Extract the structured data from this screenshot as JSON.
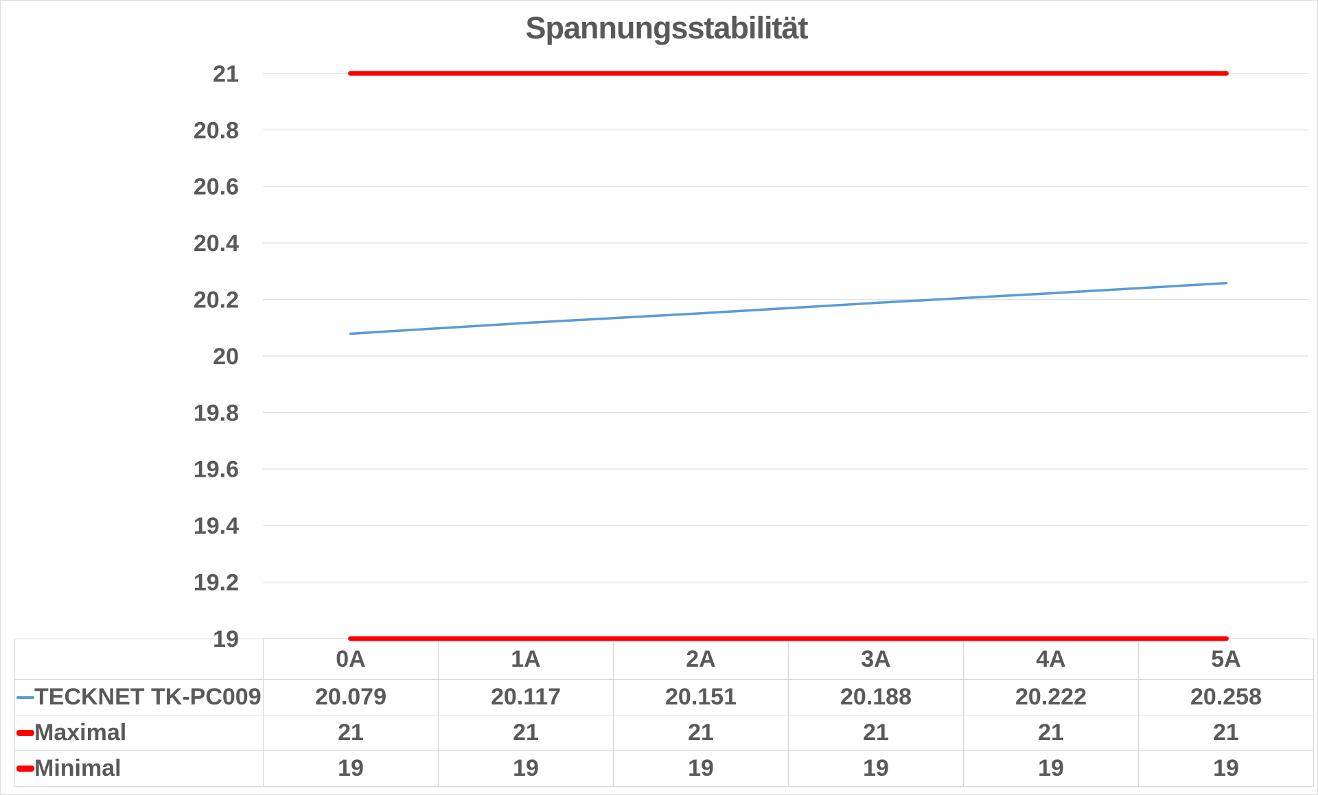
{
  "title": "Spannungsstabilität",
  "colors": {
    "series_blue": "#5b9bd5",
    "series_red": "#fe0000",
    "text_gray": "#595959",
    "gridline": "#e2e2e2",
    "table_border": "#d6d6d6"
  },
  "chart_data": {
    "type": "line",
    "title": "Spannungsstabilität",
    "categories": [
      "0A",
      "1A",
      "2A",
      "3A",
      "4A",
      "5A"
    ],
    "series": [
      {
        "name": "TECKNET TK-PC009",
        "values": [
          20.079,
          20.117,
          20.151,
          20.188,
          20.222,
          20.258
        ],
        "color": "#5b9bd5",
        "stroke_width": 3.5
      },
      {
        "name": "Maximal",
        "values": [
          21,
          21,
          21,
          21,
          21,
          21
        ],
        "color": "#fe0000",
        "stroke_width": 7
      },
      {
        "name": "Minimal",
        "values": [
          19,
          19,
          19,
          19,
          19,
          19
        ],
        "color": "#fe0000",
        "stroke_width": 7
      }
    ],
    "xlabel": "",
    "ylabel": "",
    "ylim": [
      19,
      21
    ],
    "ytick_step": 0.2,
    "yticks": [
      "21",
      "20.8",
      "20.6",
      "20.4",
      "20.2",
      "20",
      "19.8",
      "19.6",
      "19.4",
      "19.2",
      "19"
    ],
    "grid": true,
    "legend_position": "data-table-below"
  },
  "table": {
    "headers": [
      "0A",
      "1A",
      "2A",
      "3A",
      "4A",
      "5A"
    ],
    "rows": [
      {
        "label": "TECKNET TK-PC009",
        "marker": "blue-line",
        "values": [
          "20.079",
          "20.117",
          "20.151",
          "20.188",
          "20.222",
          "20.258"
        ]
      },
      {
        "label": "Maximal",
        "marker": "red-line",
        "values": [
          "21",
          "21",
          "21",
          "21",
          "21",
          "21"
        ]
      },
      {
        "label": "Minimal",
        "marker": "red-line",
        "values": [
          "19",
          "19",
          "19",
          "19",
          "19",
          "19"
        ]
      }
    ]
  }
}
